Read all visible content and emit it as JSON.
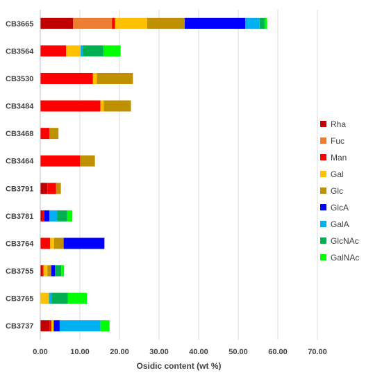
{
  "chart_data": {
    "type": "bar",
    "orientation": "horizontal",
    "stacked": true,
    "xlabel": "Osidic content (wt %)",
    "ylabel": "",
    "xlim": [
      0,
      70
    ],
    "x_ticks": [
      "0.00",
      "10.00",
      "20.00",
      "30.00",
      "40.00",
      "50.00",
      "60.00",
      "70.00"
    ],
    "grid": true,
    "legend_position": "right",
    "categories": [
      "CB3665",
      "CB3564",
      "CB3530",
      "CB3484",
      "CB3468",
      "CB3464",
      "CB3791",
      "CB3781",
      "CB3764",
      "CB3755",
      "CB3765",
      "CB3737"
    ],
    "series": [
      {
        "name": "Rha",
        "color": "#c00000",
        "values": [
          8.3,
          0,
          0,
          0,
          0,
          0,
          1.8,
          0.5,
          0,
          0.4,
          0,
          2.3
        ]
      },
      {
        "name": "Fuc",
        "color": "#ed7d31",
        "values": [
          9.8,
          0,
          0,
          0,
          0,
          0,
          0,
          0,
          0,
          0,
          0,
          0
        ]
      },
      {
        "name": "Man",
        "color": "#ff0000",
        "values": [
          0.8,
          6.5,
          13.3,
          15.2,
          2.3,
          10.0,
          2.2,
          0.5,
          2.5,
          0.4,
          0,
          0.5
        ]
      },
      {
        "name": "Gal",
        "color": "#ffc000",
        "values": [
          8.1,
          3.7,
          1.0,
          0.8,
          0,
          0,
          0,
          0,
          1.0,
          1.0,
          2.2,
          0.6
        ]
      },
      {
        "name": "Glc",
        "color": "#bf9000",
        "values": [
          9.5,
          0,
          9.1,
          6.9,
          2.3,
          3.8,
          1.2,
          0,
          2.4,
          1.0,
          0,
          0
        ]
      },
      {
        "name": "GlcA",
        "color": "#0000ff",
        "values": [
          15.3,
          0,
          0,
          0,
          0,
          0,
          0,
          1.3,
          10.3,
          0.9,
          0,
          1.5
        ]
      },
      {
        "name": "GalA",
        "color": "#00b0f0",
        "values": [
          3.6,
          0.5,
          0,
          0,
          0,
          0,
          0,
          2.0,
          0,
          0,
          0.7,
          10.3
        ]
      },
      {
        "name": "GlcNAc",
        "color": "#00b050",
        "values": [
          1.3,
          5.3,
          0,
          0,
          0,
          0,
          0,
          2.5,
          0,
          1.6,
          4.1,
          0
        ]
      },
      {
        "name": "GalNAc",
        "color": "#00ff00",
        "values": [
          0.6,
          4.3,
          0,
          0,
          0,
          0,
          0,
          1.3,
          0,
          0.7,
          4.8,
          2.3
        ]
      }
    ]
  }
}
